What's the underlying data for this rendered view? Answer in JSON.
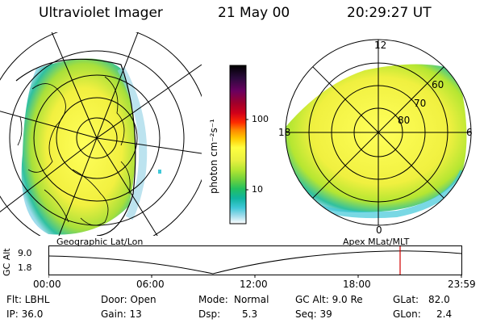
{
  "header": {
    "instrument": "Ultraviolet Imager",
    "date": "21 May 00",
    "time": "20:29:27 UT"
  },
  "colorbar": {
    "unit_label": "photon cm⁻²s⁻¹",
    "ticks": [
      "100",
      "10"
    ],
    "colors": [
      "#000000",
      "#2b0a3d",
      "#6a0060",
      "#a0002a",
      "#d0001a",
      "#ff2a00",
      "#ff8a00",
      "#ffc800",
      "#ffff40",
      "#e8f040",
      "#b4e632",
      "#70d23c",
      "#22c060",
      "#10b4a0",
      "#40c8d8",
      "#a0dcec",
      "#ffffff"
    ]
  },
  "geo_map": {
    "label": "Geographic Lat/Lon"
  },
  "polar_map": {
    "label": "Apex MLat/MLT",
    "mlt_labels": {
      "top": "12",
      "bottom": "0",
      "left": "18",
      "right": "6"
    },
    "lat_labels": [
      "60",
      "70",
      "80"
    ]
  },
  "timeline": {
    "axis_label": "GC Alt",
    "y_ticks": [
      "9.0",
      "1.8"
    ],
    "x_ticks": [
      "00:00",
      "06:00",
      "12:00",
      "18:00",
      "23:59"
    ],
    "marker_color": "#d00000"
  },
  "status": {
    "flt": "Flt: LBHL",
    "door": "Door: Open",
    "mode_label": "Mode:",
    "mode_value": "Normal",
    "gc_alt": "GC Alt: 9.0 Re",
    "glat_label": "GLat:",
    "glat_value": "82.0",
    "ip": "IP: 36.0",
    "gain": "Gain: 13",
    "dsp_label": "Dsp:",
    "dsp_value": "5.3",
    "seq": "Seq: 39",
    "glon_label": "GLon:",
    "glon_value": "2.4"
  }
}
